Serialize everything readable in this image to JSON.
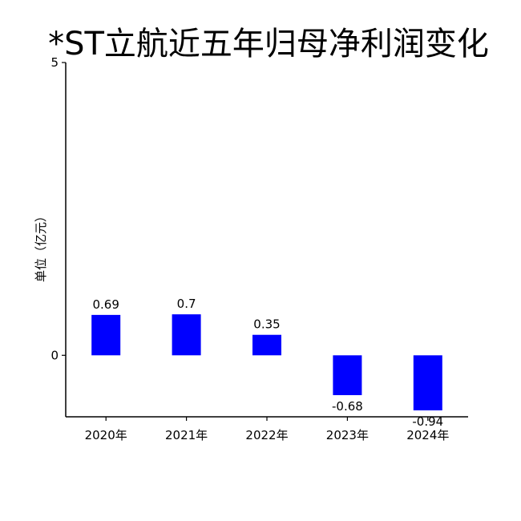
{
  "chart_data": {
    "type": "bar",
    "title": "*ST立航近五年归母净利润变化",
    "xlabel": "",
    "ylabel": "单位（亿元）",
    "categories": [
      "2020年",
      "2021年",
      "2022年",
      "2023年",
      "2024年"
    ],
    "values": [
      0.69,
      0.7,
      0.35,
      -0.68,
      -0.94
    ],
    "data_labels": [
      "0.69",
      "0.7",
      "0.35",
      "-0.68",
      "-0.94"
    ],
    "ylim": [
      -1.05,
      5
    ],
    "yticks": [
      0,
      5
    ],
    "ytick_labels": [
      "0",
      "5"
    ],
    "bar_color": "#0000ff",
    "grid": false,
    "legend": "none"
  }
}
